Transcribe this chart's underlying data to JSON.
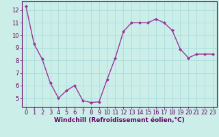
{
  "x": [
    0,
    1,
    2,
    3,
    4,
    5,
    6,
    7,
    8,
    9,
    10,
    11,
    12,
    13,
    14,
    15,
    16,
    17,
    18,
    19,
    20,
    21,
    22,
    23
  ],
  "y": [
    12.3,
    9.3,
    8.1,
    6.2,
    5.0,
    5.6,
    6.0,
    4.8,
    4.65,
    4.7,
    6.5,
    8.2,
    10.3,
    11.0,
    11.0,
    11.0,
    11.3,
    11.0,
    10.4,
    8.9,
    8.2,
    8.5,
    8.5,
    8.5
  ],
  "line_color": "#993399",
  "marker": "D",
  "marker_size": 2.0,
  "bg_color": "#cceee8",
  "grid_color": "#aadddd",
  "xlabel": "Windchill (Refroidissement éolien,°C)",
  "xlabel_color": "#660066",
  "tick_color": "#660066",
  "label_color": "#660066",
  "ylim": [
    4.3,
    12.7
  ],
  "xlim": [
    -0.5,
    23.5
  ],
  "yticks": [
    5,
    6,
    7,
    8,
    9,
    10,
    11,
    12
  ],
  "xticks": [
    0,
    1,
    2,
    3,
    4,
    5,
    6,
    7,
    8,
    9,
    10,
    11,
    12,
    13,
    14,
    15,
    16,
    17,
    18,
    19,
    20,
    21,
    22,
    23
  ],
  "line_width": 1.0,
  "tick_fontsize": 6.0,
  "xlabel_fontsize": 6.5
}
